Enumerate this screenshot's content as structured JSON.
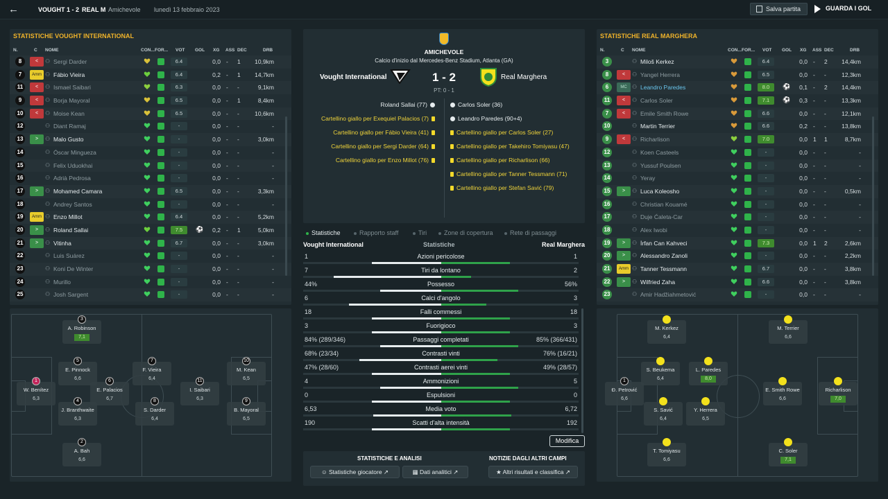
{
  "topbar": {
    "home": "VOUGHT",
    "score": "1 - 2",
    "away": "REAL M",
    "type": "Amichevole",
    "date": "lunedì 13 febbraio 2023",
    "save_label": "Salva partita",
    "goals_label": "GUARDA I GOL"
  },
  "left": {
    "title": "STATISTICHE VOUGHT INTERNATIONAL",
    "headers": {
      "n": "N.",
      "c": "C",
      "name": "NOME",
      "con": "CON...",
      "for": "FOR...",
      "vot": "VOT",
      "gol": "GOL",
      "xg": "XG",
      "ass": "ASS",
      "dec": "DEC",
      "drb": "DRB"
    },
    "rows": [
      {
        "n": "8",
        "cap": "red",
        "capt": "<",
        "name": "Sergi Darder",
        "dim": true,
        "cond": "#d9c13a",
        "vote": "6.4",
        "hi": false,
        "goal": "",
        "xg": "0,0",
        "ass": "-",
        "dec": "1",
        "drb": "10,9km"
      },
      {
        "n": "7",
        "cap": "yel",
        "capt": "Amm",
        "name": "Fábio Vieira",
        "dim": false,
        "cond": "#6ccf3e",
        "vote": "6.4",
        "hi": false,
        "goal": "",
        "xg": "0,2",
        "ass": "-",
        "dec": "1",
        "drb": "14,7km"
      },
      {
        "n": "11",
        "cap": "red",
        "capt": "<",
        "name": "Ismael Saibari",
        "dim": true,
        "cond": "#8ccf3e",
        "vote": "6.3",
        "hi": false,
        "goal": "",
        "xg": "0,0",
        "ass": "-",
        "dec": "-",
        "drb": "9,1km"
      },
      {
        "n": "9",
        "cap": "red",
        "capt": "<",
        "name": "Borja Mayoral",
        "dim": true,
        "cond": "#d9c13a",
        "vote": "6.5",
        "hi": false,
        "goal": "",
        "xg": "0,0",
        "ass": "-",
        "dec": "1",
        "drb": "8,4km"
      },
      {
        "n": "10",
        "cap": "red",
        "capt": "<",
        "name": "Moise Kean",
        "dim": true,
        "cond": "#d9c13a",
        "vote": "6.5",
        "hi": false,
        "goal": "",
        "xg": "0,0",
        "ass": "-",
        "dec": "-",
        "drb": "10,6km"
      },
      {
        "n": "12",
        "cap": "",
        "capt": "",
        "name": "Diant Ramaj",
        "dim": true,
        "cond": "#3fcf5e",
        "vote": "-",
        "hi": false,
        "goal": "",
        "xg": "0,0",
        "ass": "-",
        "dec": "-",
        "drb": "-"
      },
      {
        "n": "13",
        "cap": "grn",
        "capt": ">",
        "name": "Malo Gusto",
        "dim": false,
        "cond": "#3fcf5e",
        "vote": "-",
        "hi": false,
        "goal": "",
        "xg": "0,0",
        "ass": "-",
        "dec": "-",
        "drb": "3,0km"
      },
      {
        "n": "14",
        "cap": "",
        "capt": "",
        "name": "Óscar Mingueza",
        "dim": true,
        "cond": "#3fcf5e",
        "vote": "-",
        "hi": false,
        "goal": "",
        "xg": "0,0",
        "ass": "-",
        "dec": "-",
        "drb": "-"
      },
      {
        "n": "15",
        "cap": "",
        "capt": "",
        "name": "Felix Uduokhai",
        "dim": true,
        "cond": "#3fcf5e",
        "vote": "-",
        "hi": false,
        "goal": "",
        "xg": "0,0",
        "ass": "-",
        "dec": "-",
        "drb": "-"
      },
      {
        "n": "16",
        "cap": "",
        "capt": "",
        "name": "Adrià Pedrosa",
        "dim": true,
        "cond": "#3fcf5e",
        "vote": "-",
        "hi": false,
        "goal": "",
        "xg": "0,0",
        "ass": "-",
        "dec": "-",
        "drb": "-"
      },
      {
        "n": "17",
        "cap": "grn",
        "capt": ">",
        "name": "Mohamed Camara",
        "dim": false,
        "cond": "#3fcf5e",
        "vote": "6.5",
        "hi": false,
        "goal": "",
        "xg": "0,0",
        "ass": "-",
        "dec": "-",
        "drb": "3,3km"
      },
      {
        "n": "18",
        "cap": "",
        "capt": "",
        "name": "Andrey Santos",
        "dim": true,
        "cond": "#3fcf5e",
        "vote": "-",
        "hi": false,
        "goal": "",
        "xg": "0,0",
        "ass": "-",
        "dec": "-",
        "drb": "-"
      },
      {
        "n": "19",
        "cap": "yel",
        "capt": "Amm",
        "name": "Enzo Millot",
        "dim": false,
        "cond": "#3fcf5e",
        "vote": "6.4",
        "hi": false,
        "goal": "",
        "xg": "0,0",
        "ass": "-",
        "dec": "-",
        "drb": "5,2km"
      },
      {
        "n": "20",
        "cap": "grn",
        "capt": ">",
        "name": "Roland Sallai",
        "dim": false,
        "cond": "#6ccf3e",
        "vote": "7.5",
        "hi": true,
        "goal": "⚽",
        "xg": "0,2",
        "ass": "-",
        "dec": "1",
        "drb": "5,0km"
      },
      {
        "n": "21",
        "cap": "grn",
        "capt": ">",
        "name": "Vitinha",
        "dim": false,
        "cond": "#3fcf5e",
        "vote": "6.7",
        "hi": false,
        "goal": "",
        "xg": "0,0",
        "ass": "-",
        "dec": "-",
        "drb": "3,0km"
      },
      {
        "n": "22",
        "cap": "",
        "capt": "",
        "name": "Luis Suárez",
        "dim": true,
        "cond": "#3fcf5e",
        "vote": "-",
        "hi": false,
        "goal": "",
        "xg": "0,0",
        "ass": "-",
        "dec": "-",
        "drb": "-"
      },
      {
        "n": "23",
        "cap": "",
        "capt": "",
        "name": "Koni De Winter",
        "dim": true,
        "cond": "#3fcf5e",
        "vote": "-",
        "hi": false,
        "goal": "",
        "xg": "0,0",
        "ass": "-",
        "dec": "-",
        "drb": "-"
      },
      {
        "n": "24",
        "cap": "",
        "capt": "",
        "name": "Murillo",
        "dim": true,
        "cond": "#3fcf5e",
        "vote": "-",
        "hi": false,
        "goal": "",
        "xg": "0,0",
        "ass": "-",
        "dec": "-",
        "drb": "-"
      },
      {
        "n": "25",
        "cap": "",
        "capt": "",
        "name": "Josh Sargent",
        "dim": true,
        "cond": "#3fcf5e",
        "vote": "-",
        "hi": false,
        "goal": "",
        "xg": "0,0",
        "ass": "-",
        "dec": "-",
        "drb": "-"
      }
    ],
    "pitch": [
      {
        "n": "3",
        "name": "A. Robinson",
        "v": "7,1",
        "hi": true,
        "pk": false
      },
      {
        "n": "5",
        "name": "E. Pinnock",
        "v": "6,6",
        "hi": false,
        "pk": false
      },
      {
        "n": "7",
        "name": "F. Vieira",
        "v": "6,4",
        "hi": false,
        "pk": false
      },
      {
        "n": "10",
        "name": "M. Kean",
        "v": "6,5",
        "hi": false,
        "pk": false
      },
      {
        "n": "1",
        "name": "W. Benítez",
        "v": "6,3",
        "hi": false,
        "pk": true
      },
      {
        "n": "6",
        "name": "E. Palacios",
        "v": "6,7",
        "hi": false,
        "pk": false
      },
      {
        "n": "11",
        "name": "I. Saibari",
        "v": "6,3",
        "hi": false,
        "pk": false
      },
      {
        "n": "4",
        "name": "J. Branthwaite",
        "v": "6,3",
        "hi": false,
        "pk": false
      },
      {
        "n": "8",
        "name": "S. Darder",
        "v": "6,4",
        "hi": false,
        "pk": false
      },
      {
        "n": "9",
        "name": "B. Mayoral",
        "v": "6,5",
        "hi": false,
        "pk": false
      },
      {
        "n": "2",
        "name": "A. Bah",
        "v": "6,6",
        "hi": false,
        "pk": false
      }
    ]
  },
  "right": {
    "title": "STATISTICHE REAL MARGHERA",
    "headers": {
      "n": "N.",
      "c": "C",
      "name": "NOME",
      "con": "CON...",
      "for": "FOR...",
      "vot": "VOT",
      "gol": "GOL",
      "xg": "XG",
      "ass": "ASS",
      "dec": "DEC",
      "drb": "DRB"
    },
    "rows": [
      {
        "n": "3",
        "cap": "",
        "capt": "",
        "name": "Miloš Kerkez",
        "dim": false,
        "cond": "#d99a3a",
        "vote": "6.4",
        "hi": false,
        "goal": "",
        "xg": "0,0",
        "ass": "-",
        "dec": "2",
        "drb": "14,4km"
      },
      {
        "n": "8",
        "cap": "red",
        "capt": "<",
        "name": "Yangel Herrera",
        "dim": true,
        "cond": "#d99a3a",
        "vote": "6.5",
        "hi": false,
        "goal": "",
        "xg": "0,0",
        "ass": "-",
        "dec": "-",
        "drb": "12,3km"
      },
      {
        "n": "6",
        "cap": "mc",
        "capt": "MC",
        "name": "Leandro Paredes",
        "dim": false,
        "sel": true,
        "cond": "#d99a3a",
        "vote": "8.0",
        "hi": true,
        "goal": "⚽",
        "xg": "0,1",
        "ass": "-",
        "dec": "2",
        "drb": "14,4km"
      },
      {
        "n": "11",
        "cap": "red",
        "capt": "<",
        "name": "Carlos Soler",
        "dim": true,
        "cond": "#d99a3a",
        "vote": "7.1",
        "hi": true,
        "goal": "⚽",
        "xg": "0,3",
        "ass": "-",
        "dec": "-",
        "drb": "13,3km"
      },
      {
        "n": "7",
        "cap": "red",
        "capt": "<",
        "name": "Emile Smith Rowe",
        "dim": true,
        "cond": "#d99a3a",
        "vote": "6.6",
        "hi": false,
        "goal": "",
        "xg": "0,0",
        "ass": "-",
        "dec": "-",
        "drb": "12,1km"
      },
      {
        "n": "10",
        "cap": "",
        "capt": "",
        "name": "Martin Terrier",
        "dim": false,
        "cond": "#d99a3a",
        "vote": "6.6",
        "hi": false,
        "goal": "",
        "xg": "0,2",
        "ass": "-",
        "dec": "-",
        "drb": "13,8km"
      },
      {
        "n": "9",
        "cap": "red",
        "capt": "<",
        "name": "Richarlison",
        "dim": true,
        "cond": "#8ccf3e",
        "vote": "7.0",
        "hi": true,
        "goal": "",
        "xg": "0,0",
        "ass": "1",
        "dec": "1",
        "drb": "8,7km"
      },
      {
        "n": "12",
        "cap": "",
        "capt": "",
        "name": "Koen Casteels",
        "dim": true,
        "cond": "#3fcf5e",
        "vote": "-",
        "hi": false,
        "goal": "",
        "xg": "0,0",
        "ass": "-",
        "dec": "-",
        "drb": "-"
      },
      {
        "n": "13",
        "cap": "",
        "capt": "",
        "name": "Yussuf Poulsen",
        "dim": true,
        "cond": "#3fcf5e",
        "vote": "-",
        "hi": false,
        "goal": "",
        "xg": "0,0",
        "ass": "-",
        "dec": "-",
        "drb": "-"
      },
      {
        "n": "14",
        "cap": "",
        "capt": "",
        "name": "Yeray",
        "dim": true,
        "cond": "#3fcf5e",
        "vote": "-",
        "hi": false,
        "goal": "",
        "xg": "0,0",
        "ass": "-",
        "dec": "-",
        "drb": "-"
      },
      {
        "n": "15",
        "cap": "grn",
        "capt": ">",
        "name": "Luca Koleosho",
        "dim": false,
        "cond": "#3fcf5e",
        "vote": "-",
        "hi": false,
        "goal": "",
        "xg": "0,0",
        "ass": "-",
        "dec": "-",
        "drb": "0,5km"
      },
      {
        "n": "16",
        "cap": "",
        "capt": "",
        "name": "Christian Kouamé",
        "dim": true,
        "cond": "#3fcf5e",
        "vote": "-",
        "hi": false,
        "goal": "",
        "xg": "0,0",
        "ass": "-",
        "dec": "-",
        "drb": "-"
      },
      {
        "n": "17",
        "cap": "",
        "capt": "",
        "name": "Duje Ćaleta-Car",
        "dim": true,
        "cond": "#3fcf5e",
        "vote": "-",
        "hi": false,
        "goal": "",
        "xg": "0,0",
        "ass": "-",
        "dec": "-",
        "drb": "-"
      },
      {
        "n": "18",
        "cap": "",
        "capt": "",
        "name": "Alex Iwobi",
        "dim": true,
        "cond": "#3fcf5e",
        "vote": "-",
        "hi": false,
        "goal": "",
        "xg": "0,0",
        "ass": "-",
        "dec": "-",
        "drb": "-"
      },
      {
        "n": "19",
        "cap": "grn",
        "capt": ">",
        "name": "İrfan Can Kahveci",
        "dim": false,
        "cond": "#3fcf5e",
        "vote": "7.3",
        "hi": true,
        "goal": "",
        "xg": "0,0",
        "ass": "1",
        "dec": "2",
        "drb": "2,6km"
      },
      {
        "n": "20",
        "cap": "grn",
        "capt": ">",
        "name": "Alessandro Zanoli",
        "dim": false,
        "cond": "#3fcf5e",
        "vote": "-",
        "hi": false,
        "goal": "",
        "xg": "0,0",
        "ass": "-",
        "dec": "-",
        "drb": "2,2km"
      },
      {
        "n": "21",
        "cap": "yel",
        "capt": "Amm",
        "name": "Tanner Tessmann",
        "dim": false,
        "cond": "#3fcf5e",
        "vote": "6.7",
        "hi": false,
        "goal": "",
        "xg": "0,0",
        "ass": "-",
        "dec": "-",
        "drb": "3,8km"
      },
      {
        "n": "22",
        "cap": "grn",
        "capt": ">",
        "name": "Wilfried Zaha",
        "dim": false,
        "cond": "#3fcf5e",
        "vote": "6.6",
        "hi": false,
        "goal": "",
        "xg": "0,0",
        "ass": "-",
        "dec": "-",
        "drb": "3,8km"
      },
      {
        "n": "23",
        "cap": "",
        "capt": "",
        "name": "Amir Hadžiahmetović",
        "dim": true,
        "cond": "#3fcf5e",
        "vote": "-",
        "hi": false,
        "goal": "",
        "xg": "0,0",
        "ass": "-",
        "dec": "-",
        "drb": "-"
      }
    ],
    "pitch": [
      {
        "name": "M. Kerkez",
        "v": "6,4",
        "hi": false
      },
      {
        "name": "M. Terrier",
        "v": "6,6",
        "hi": false
      },
      {
        "name": "S. Beukema",
        "v": "6,4",
        "hi": false
      },
      {
        "name": "L. Paredes",
        "v": "8,0",
        "hi": true
      },
      {
        "name": "Đ. Petrović",
        "v": "6,6",
        "hi": false,
        "gk": true,
        "n": "1"
      },
      {
        "name": "E. Smith Rowe",
        "v": "6,6",
        "hi": false
      },
      {
        "name": "Richarlison",
        "v": "7,0",
        "hi": true
      },
      {
        "name": "S. Savić",
        "v": "6,4",
        "hi": false
      },
      {
        "name": "Y. Herrera",
        "v": "6,5",
        "hi": false
      },
      {
        "name": "T. Tomiyasu",
        "v": "6,6",
        "hi": false
      },
      {
        "name": "C. Soler",
        "v": "7,1",
        "hi": true
      }
    ]
  },
  "match": {
    "type": "AMICHEVOLE",
    "venue": "Calcio d'inizio dal Mercedes-Benz Stadium, Atlanta (GA)",
    "home": "Vought International",
    "away": "Real Marghera",
    "score": "1 - 2",
    "ht": "PT: 0 - 1",
    "home_events": [
      {
        "t": "Roland Sallai (77)",
        "k": "goal"
      },
      {
        "t": "Cartellino giallo per Exequiel Palacios (7)",
        "k": "card"
      },
      {
        "t": "Cartellino giallo per Fábio Vieira (41)",
        "k": "card"
      },
      {
        "t": "Cartellino giallo per Sergi Darder (64)",
        "k": "card"
      },
      {
        "t": "Cartellino giallo per Enzo Millot (76)",
        "k": "card"
      }
    ],
    "away_events": [
      {
        "t": "Carlos Soler (36)",
        "k": "goal"
      },
      {
        "t": "Leandro Paredes (90+4)",
        "k": "goal"
      },
      {
        "t": "Cartellino giallo per Carlos Soler (27)",
        "k": "card"
      },
      {
        "t": "Cartellino giallo per Takehiro Tomiyasu (47)",
        "k": "card"
      },
      {
        "t": "Cartellino giallo per Richarlison (66)",
        "k": "card"
      },
      {
        "t": "Cartellino giallo per Tanner Tessmann (71)",
        "k": "card"
      },
      {
        "t": "Cartellino giallo per Stefan Savić (79)",
        "k": "card"
      }
    ]
  },
  "tabs": [
    "Statistiche",
    "Rapporto staff",
    "Tiri",
    "Zone di copertura",
    "Rete di passaggi"
  ],
  "stats": {
    "home_label": "Vought International",
    "mid_label": "Statistiche",
    "away_label": "Real Marghera",
    "rows": [
      {
        "l": "1",
        "label": "Azioni pericolose",
        "r": "1",
        "lp": 0.5
      },
      {
        "l": "7",
        "label": "Tiri da lontano",
        "r": "2",
        "lp": 0.78
      },
      {
        "l": "44%",
        "label": "Possesso",
        "r": "56%",
        "lp": 0.44
      },
      {
        "l": "6",
        "label": "Calci d'angolo",
        "r": "3",
        "lp": 0.67
      },
      {
        "l": "18",
        "label": "Falli commessi",
        "r": "18",
        "lp": 0.5
      },
      {
        "l": "3",
        "label": "Fuorigioco",
        "r": "3",
        "lp": 0.5
      },
      {
        "l": "84% (289/346)",
        "label": "Passaggi completati",
        "r": "85% (366/431)",
        "lp": 0.44
      },
      {
        "l": "68% (23/34)",
        "label": "Contrasti vinti",
        "r": "76% (16/21)",
        "lp": 0.59
      },
      {
        "l": "47% (28/60)",
        "label": "Contrasti aerei vinti",
        "r": "49% (28/57)",
        "lp": 0.5
      },
      {
        "l": "4",
        "label": "Ammonizioni",
        "r": "5",
        "lp": 0.44
      },
      {
        "l": "0",
        "label": "Espulsioni",
        "r": "0",
        "lp": 0.5
      },
      {
        "l": "6,53",
        "label": "Media voto",
        "r": "6,72",
        "lp": 0.49
      },
      {
        "l": "190",
        "label": "Scatti d'alta intensità",
        "r": "192",
        "lp": 0.5
      }
    ],
    "edit_label": "Modifica"
  },
  "bottom": {
    "h1": "STATISTICHE E ANALISI",
    "h2": "NOTIZIE DAGLI ALTRI CAMPI",
    "b1": "Statistiche giocatore",
    "b2": "Dati analitici",
    "b3": "Altri risultati e classifica"
  }
}
